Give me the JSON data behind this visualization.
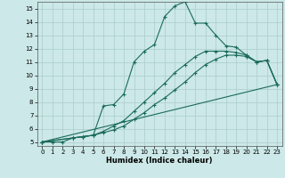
{
  "xlabel": "Humidex (Indice chaleur)",
  "ylabel": "",
  "xlim": [
    -0.5,
    23.5
  ],
  "ylim": [
    4.7,
    15.5
  ],
  "yticks": [
    5,
    6,
    7,
    8,
    9,
    10,
    11,
    12,
    13,
    14,
    15
  ],
  "xticks": [
    0,
    1,
    2,
    3,
    4,
    5,
    6,
    7,
    8,
    9,
    10,
    11,
    12,
    13,
    14,
    15,
    16,
    17,
    18,
    19,
    20,
    21,
    22,
    23
  ],
  "line_color": "#1a6b5a",
  "marker": "+",
  "markersize": 3.5,
  "linewidth": 0.8,
  "markeredgewidth": 0.8,
  "background_color": "#cce8e8",
  "grid_color": "#aacccc",
  "lines": [
    {
      "x": [
        0,
        1,
        2,
        3,
        4,
        5,
        6,
        7,
        8,
        9,
        10,
        11,
        12,
        13,
        14,
        15,
        16,
        17,
        18,
        19,
        20,
        21,
        22,
        23
      ],
      "y": [
        5,
        5,
        5,
        5.3,
        5.4,
        5.5,
        7.7,
        7.8,
        8.6,
        11.0,
        11.8,
        12.3,
        14.4,
        15.2,
        15.5,
        13.9,
        13.9,
        13.0,
        12.2,
        12.1,
        11.5,
        11.0,
        11.1,
        9.3
      ]
    },
    {
      "x": [
        0,
        3,
        4,
        5,
        6,
        7,
        8,
        9,
        10,
        11,
        12,
        13,
        14,
        15,
        16,
        17,
        18,
        19,
        20,
        21,
        22,
        23
      ],
      "y": [
        5,
        5.3,
        5.4,
        5.5,
        5.8,
        6.2,
        6.6,
        7.3,
        8.0,
        8.7,
        9.4,
        10.2,
        10.8,
        11.4,
        11.8,
        11.8,
        11.8,
        11.7,
        11.5,
        11.0,
        11.1,
        9.3
      ]
    },
    {
      "x": [
        0,
        3,
        4,
        5,
        6,
        7,
        8,
        9,
        10,
        11,
        12,
        13,
        14,
        15,
        16,
        17,
        18,
        19,
        20,
        21,
        22,
        23
      ],
      "y": [
        5,
        5.3,
        5.4,
        5.5,
        5.7,
        5.9,
        6.2,
        6.7,
        7.2,
        7.8,
        8.3,
        8.9,
        9.5,
        10.2,
        10.8,
        11.2,
        11.5,
        11.5,
        11.4,
        11.0,
        11.1,
        9.3
      ]
    },
    {
      "x": [
        0,
        23
      ],
      "y": [
        5,
        9.3
      ]
    }
  ]
}
